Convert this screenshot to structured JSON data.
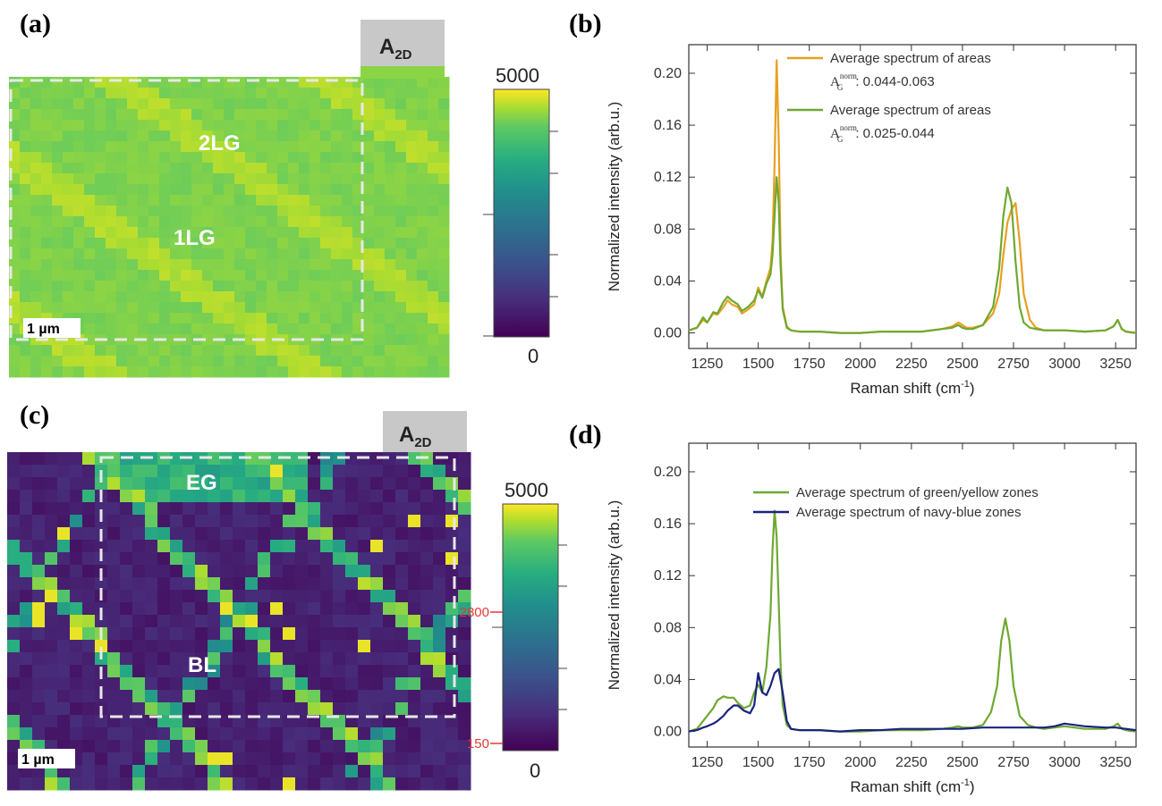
{
  "panels": {
    "a": {
      "letter": "(a)",
      "tag": "A",
      "tag_sub": "2D",
      "labels": [
        "2LG",
        "1LG"
      ],
      "scalebar": "1 µm",
      "colorbar": {
        "max": "5000",
        "min": "0"
      }
    },
    "b": {
      "letter": "(b)",
      "chart_data": {
        "type": "line",
        "xlabel": "Raman shift (cm",
        "xlabel_sup": "-1",
        "xlabel_end": ")",
        "ylabel": "Normalized intensity (arb.u.)",
        "xlim": [
          1160,
          3350
        ],
        "ylim": [
          -0.012,
          0.222
        ],
        "xticks": [
          1250,
          1500,
          1750,
          2000,
          2250,
          2500,
          2750,
          3000,
          3250
        ],
        "yticks": [
          "0.00",
          "0.04",
          "0.08",
          "0.12",
          "0.16",
          "0.20"
        ],
        "legend": [
          {
            "line1": "Average spectrum of  areas",
            "sym": "A",
            "sub": "G",
            "sup": "norm",
            "range": ": 0.044-0.063",
            "color": "#E8A020"
          },
          {
            "line1": "Average spectrum of  areas",
            "sym": "A",
            "sub": "G",
            "sup": "norm",
            "range": ": 0.025-0.044",
            "color": "#6FA832"
          }
        ],
        "series": [
          {
            "color": "#E8A020",
            "x": [
              1160,
              1200,
              1230,
              1250,
              1280,
              1300,
              1330,
              1350,
              1370,
              1400,
              1420,
              1450,
              1480,
              1500,
              1520,
              1540,
              1560,
              1570,
              1580,
              1590,
              1600,
              1610,
              1620,
              1640,
              1660,
              1700,
              1800,
              1900,
              2000,
              2100,
              2200,
              2300,
              2400,
              2450,
              2480,
              2500,
              2520,
              2550,
              2600,
              2650,
              2680,
              2700,
              2720,
              2740,
              2760,
              2780,
              2800,
              2830,
              2860,
              2900,
              3000,
              3100,
              3200,
              3240,
              3260,
              3280,
              3300,
              3350
            ],
            "y": [
              0.002,
              0.004,
              0.01,
              0.008,
              0.015,
              0.014,
              0.02,
              0.025,
              0.022,
              0.02,
              0.015,
              0.018,
              0.022,
              0.035,
              0.028,
              0.04,
              0.05,
              0.07,
              0.13,
              0.21,
              0.15,
              0.06,
              0.02,
              0.005,
              0.002,
              0.001,
              0.001,
              0.0,
              0.0,
              0.001,
              0.001,
              0.001,
              0.003,
              0.005,
              0.008,
              0.006,
              0.004,
              0.004,
              0.006,
              0.015,
              0.03,
              0.06,
              0.085,
              0.095,
              0.1,
              0.07,
              0.03,
              0.01,
              0.004,
              0.002,
              0.002,
              0.001,
              0.002,
              0.005,
              0.01,
              0.003,
              0.001,
              0.0
            ]
          },
          {
            "color": "#6FA832",
            "x": [
              1160,
              1200,
              1230,
              1250,
              1280,
              1300,
              1330,
              1350,
              1370,
              1400,
              1420,
              1450,
              1480,
              1500,
              1520,
              1540,
              1560,
              1570,
              1580,
              1590,
              1600,
              1610,
              1620,
              1640,
              1660,
              1700,
              1800,
              1900,
              2000,
              2100,
              2200,
              2300,
              2400,
              2450,
              2480,
              2500,
              2520,
              2550,
              2600,
              2650,
              2680,
              2700,
              2720,
              2740,
              2760,
              2780,
              2800,
              2830,
              2860,
              2900,
              3000,
              3100,
              3200,
              3240,
              3260,
              3280,
              3300,
              3350
            ],
            "y": [
              0.002,
              0.004,
              0.012,
              0.008,
              0.016,
              0.015,
              0.024,
              0.028,
              0.025,
              0.022,
              0.017,
              0.02,
              0.025,
              0.033,
              0.027,
              0.038,
              0.045,
              0.06,
              0.09,
              0.12,
              0.1,
              0.05,
              0.018,
              0.004,
              0.002,
              0.001,
              0.001,
              0.0,
              0.0,
              0.001,
              0.001,
              0.001,
              0.003,
              0.004,
              0.006,
              0.004,
              0.003,
              0.003,
              0.006,
              0.02,
              0.05,
              0.09,
              0.112,
              0.1,
              0.055,
              0.02,
              0.008,
              0.004,
              0.003,
              0.002,
              0.002,
              0.001,
              0.002,
              0.005,
              0.01,
              0.003,
              0.001,
              0.0
            ]
          }
        ]
      }
    },
    "c": {
      "letter": "(c)",
      "tag": "A",
      "tag_sub": "2D",
      "labels": [
        "EG",
        "BL"
      ],
      "scalebar": "1 µm",
      "colorbar": {
        "max": "5000",
        "min": "0",
        "mark_high": "2800",
        "mark_low": "150",
        "mark_color": "#E53935"
      }
    },
    "d": {
      "letter": "(d)",
      "chart_data": {
        "type": "line",
        "xlabel": "Raman shift (cm",
        "xlabel_sup": "-1",
        "xlabel_end": ")",
        "ylabel": "Normalized intensity (arb.u.)",
        "xlim": [
          1160,
          3350
        ],
        "ylim": [
          -0.012,
          0.222
        ],
        "xticks": [
          1250,
          1500,
          1750,
          2000,
          2250,
          2500,
          2750,
          3000,
          3250
        ],
        "yticks": [
          "0.00",
          "0.04",
          "0.08",
          "0.12",
          "0.16",
          "0.20"
        ],
        "legend": [
          {
            "line1": "Average spectrum of green/yellow zones",
            "color": "#6FA832"
          },
          {
            "line1": "Average spectrum of navy-blue zones",
            "color": "#1A237E"
          }
        ],
        "series": [
          {
            "color": "#6FA832",
            "x": [
              1160,
              1200,
              1230,
              1250,
              1280,
              1300,
              1330,
              1350,
              1380,
              1400,
              1430,
              1460,
              1480,
              1500,
              1520,
              1540,
              1560,
              1570,
              1580,
              1590,
              1600,
              1610,
              1620,
              1640,
              1660,
              1700,
              1800,
              1900,
              2000,
              2100,
              2200,
              2300,
              2400,
              2450,
              2480,
              2500,
              2550,
              2600,
              2640,
              2670,
              2690,
              2710,
              2730,
              2750,
              2780,
              2820,
              2860,
              2900,
              3000,
              3100,
              3200,
              3240,
              3260,
              3280,
              3300,
              3350
            ],
            "y": [
              0.0,
              0.002,
              0.008,
              0.012,
              0.018,
              0.024,
              0.027,
              0.026,
              0.026,
              0.022,
              0.018,
              0.02,
              0.03,
              0.036,
              0.03,
              0.05,
              0.09,
              0.14,
              0.17,
              0.15,
              0.1,
              0.05,
              0.02,
              0.005,
              0.002,
              0.001,
              0.001,
              0.0,
              0.0,
              0.001,
              0.001,
              0.001,
              0.002,
              0.003,
              0.004,
              0.003,
              0.003,
              0.005,
              0.015,
              0.035,
              0.07,
              0.087,
              0.07,
              0.035,
              0.012,
              0.005,
              0.003,
              0.002,
              0.004,
              0.002,
              0.002,
              0.004,
              0.006,
              0.002,
              0.001,
              0.0
            ]
          },
          {
            "color": "#1A237E",
            "x": [
              1160,
              1200,
              1230,
              1250,
              1280,
              1300,
              1330,
              1350,
              1380,
              1400,
              1430,
              1460,
              1480,
              1500,
              1520,
              1540,
              1560,
              1580,
              1600,
              1620,
              1640,
              1660,
              1700,
              1800,
              1900,
              2000,
              2100,
              2200,
              2300,
              2400,
              2500,
              2600,
              2700,
              2800,
              2900,
              2950,
              3000,
              3050,
              3100,
              3200,
              3250,
              3300,
              3350
            ],
            "y": [
              0.0,
              0.001,
              0.003,
              0.004,
              0.006,
              0.008,
              0.012,
              0.016,
              0.02,
              0.02,
              0.016,
              0.014,
              0.02,
              0.045,
              0.03,
              0.028,
              0.035,
              0.045,
              0.048,
              0.03,
              0.008,
              0.002,
              0.001,
              0.001,
              0.0,
              0.001,
              0.001,
              0.002,
              0.002,
              0.002,
              0.002,
              0.003,
              0.003,
              0.003,
              0.003,
              0.004,
              0.006,
              0.005,
              0.004,
              0.003,
              0.003,
              0.002,
              0.001
            ]
          }
        ]
      }
    }
  }
}
